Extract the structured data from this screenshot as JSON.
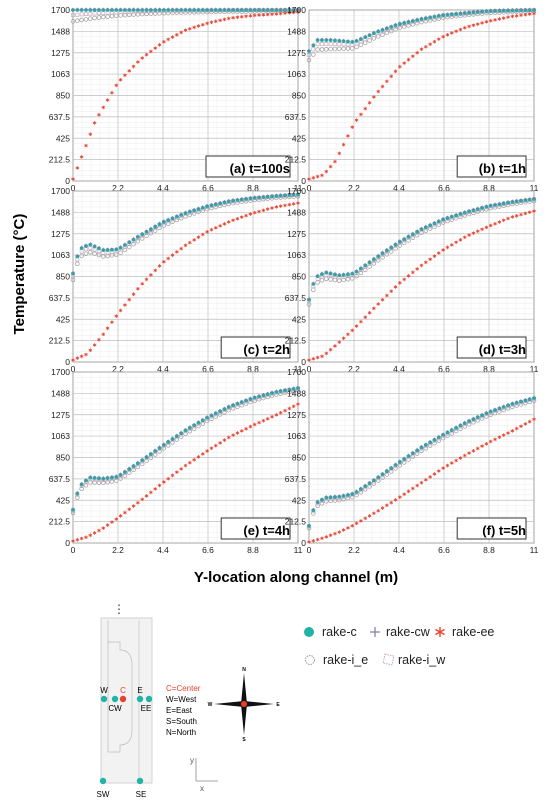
{
  "figure": {
    "ylabel": "Temperature (°C)",
    "xlabel": "Y-location along channel (m)"
  },
  "legend": [
    {
      "key": "rake_c",
      "label": "rake-c",
      "marker": "filled-circle",
      "color": "#21b3a6"
    },
    {
      "key": "rake_cw",
      "label": "rake-cw",
      "marker": "plus",
      "color": "#7a7aa8"
    },
    {
      "key": "rake_ee",
      "label": "rake-ee",
      "marker": "asterisk",
      "color": "#e8402e"
    },
    {
      "key": "rake_i_e",
      "label": "rake-i_e",
      "marker": "open-circle",
      "color": "#9a9a9a"
    },
    {
      "key": "rake_i_w",
      "label": "rake-i_w",
      "marker": "open-square",
      "color": "#c9a3bf"
    }
  ],
  "chart_data": [
    {
      "panel": "(a) t=100s",
      "type": "scatter",
      "x_ticks": [
        "0",
        "2.2",
        "4.4",
        "6.6",
        "8.8",
        "11"
      ],
      "y_ticks": [
        "0",
        "212.5",
        "425",
        "637.5",
        "850",
        "1063",
        "1275",
        "1488",
        "1700"
      ],
      "xlim": [
        0,
        11
      ],
      "ylim": [
        0,
        1700
      ],
      "center_curve": [
        [
          0,
          1700
        ],
        [
          11,
          1700
        ]
      ],
      "ee_curve": [
        [
          0,
          20
        ],
        [
          0.5,
          280
        ],
        [
          1.1,
          600
        ],
        [
          2.2,
          980
        ],
        [
          3.3,
          1210
        ],
        [
          4.4,
          1380
        ],
        [
          5.5,
          1500
        ],
        [
          6.6,
          1570
        ],
        [
          7.7,
          1620
        ],
        [
          8.8,
          1645
        ],
        [
          9.9,
          1660
        ],
        [
          11,
          1680
        ]
      ]
    },
    {
      "panel": "(b) t=1h",
      "type": "scatter",
      "x_ticks": [
        "0",
        "2.2",
        "4.4",
        "6.6",
        "8.8",
        "11"
      ],
      "y_ticks": [
        "0",
        "212.5",
        "425",
        "637.5",
        "850",
        "1063",
        "1275",
        "1488",
        "1700"
      ],
      "xlim": [
        0,
        11
      ],
      "ylim": [
        0,
        1700
      ],
      "center_curve": [
        [
          0,
          1290
        ],
        [
          0.4,
          1400
        ],
        [
          1.1,
          1400
        ],
        [
          2.2,
          1380
        ],
        [
          3.3,
          1480
        ],
        [
          4.4,
          1560
        ],
        [
          5.5,
          1610
        ],
        [
          6.6,
          1650
        ],
        [
          7.7,
          1670
        ],
        [
          8.8,
          1690
        ],
        [
          9.9,
          1695
        ],
        [
          11,
          1700
        ]
      ],
      "ee_curve": [
        [
          0,
          20
        ],
        [
          0.7,
          60
        ],
        [
          1.3,
          200
        ],
        [
          2.2,
          570
        ],
        [
          3.3,
          870
        ],
        [
          4.4,
          1130
        ],
        [
          5.5,
          1310
        ],
        [
          6.6,
          1440
        ],
        [
          7.7,
          1530
        ],
        [
          8.8,
          1590
        ],
        [
          9.9,
          1635
        ],
        [
          11,
          1665
        ]
      ]
    },
    {
      "panel": "(c) t=2h",
      "type": "scatter",
      "x_ticks": [
        "0",
        "2.2",
        "4.4",
        "6.6",
        "8.8",
        "11"
      ],
      "y_ticks": [
        "0",
        "212.5",
        "425",
        "637.5",
        "850",
        "1063",
        "1275",
        "1488",
        "1700"
      ],
      "xlim": [
        0,
        11
      ],
      "ylim": [
        0,
        1700
      ],
      "center_curve": [
        [
          0,
          880
        ],
        [
          0.3,
          1120
        ],
        [
          0.8,
          1170
        ],
        [
          1.5,
          1110
        ],
        [
          2.2,
          1120
        ],
        [
          3.3,
          1260
        ],
        [
          4.4,
          1390
        ],
        [
          5.5,
          1480
        ],
        [
          6.6,
          1550
        ],
        [
          7.7,
          1600
        ],
        [
          8.8,
          1630
        ],
        [
          9.9,
          1650
        ],
        [
          11,
          1665
        ]
      ],
      "ee_curve": [
        [
          0,
          20
        ],
        [
          0.7,
          80
        ],
        [
          1.5,
          280
        ],
        [
          2.2,
          480
        ],
        [
          3.3,
          760
        ],
        [
          4.4,
          990
        ],
        [
          5.5,
          1160
        ],
        [
          6.6,
          1300
        ],
        [
          7.7,
          1400
        ],
        [
          8.8,
          1480
        ],
        [
          9.9,
          1540
        ],
        [
          11,
          1580
        ]
      ]
    },
    {
      "panel": "(d) t=3h",
      "type": "scatter",
      "x_ticks": [
        "0",
        "2.2",
        "4.4",
        "6.6",
        "8.8",
        "11"
      ],
      "y_ticks": [
        "0",
        "212.5",
        "425",
        "637.5",
        "850",
        "1063",
        "1275",
        "1488",
        "1700"
      ],
      "xlim": [
        0,
        11
      ],
      "ylim": [
        0,
        1700
      ],
      "center_curve": [
        [
          0,
          620
        ],
        [
          0.3,
          840
        ],
        [
          0.8,
          890
        ],
        [
          1.5,
          860
        ],
        [
          2.2,
          880
        ],
        [
          3.3,
          1040
        ],
        [
          4.4,
          1190
        ],
        [
          5.5,
          1320
        ],
        [
          6.6,
          1420
        ],
        [
          7.7,
          1490
        ],
        [
          8.8,
          1550
        ],
        [
          9.9,
          1590
        ],
        [
          11,
          1620
        ]
      ],
      "ee_curve": [
        [
          0,
          20
        ],
        [
          0.7,
          60
        ],
        [
          1.5,
          200
        ],
        [
          2.2,
          330
        ],
        [
          3.3,
          560
        ],
        [
          4.4,
          780
        ],
        [
          5.5,
          960
        ],
        [
          6.6,
          1120
        ],
        [
          7.7,
          1250
        ],
        [
          8.8,
          1350
        ],
        [
          9.9,
          1440
        ],
        [
          11,
          1500
        ]
      ]
    },
    {
      "panel": "(e) t=4h",
      "type": "scatter",
      "x_ticks": [
        "0",
        "2.2",
        "4.4",
        "6.6",
        "8.8",
        "11"
      ],
      "y_ticks": [
        "0",
        "212.5",
        "425",
        "637.5",
        "850",
        "1063",
        "1275",
        "1488",
        "1700"
      ],
      "xlim": [
        0,
        11
      ],
      "ylim": [
        0,
        1700
      ],
      "center_curve": [
        [
          0,
          330
        ],
        [
          0.3,
          560
        ],
        [
          0.8,
          650
        ],
        [
          1.5,
          640
        ],
        [
          2.2,
          660
        ],
        [
          3.3,
          810
        ],
        [
          4.4,
          970
        ],
        [
          5.5,
          1120
        ],
        [
          6.6,
          1250
        ],
        [
          7.7,
          1360
        ],
        [
          8.8,
          1440
        ],
        [
          9.9,
          1500
        ],
        [
          11,
          1540
        ]
      ],
      "ee_curve": [
        [
          0,
          20
        ],
        [
          0.7,
          60
        ],
        [
          1.5,
          150
        ],
        [
          2.2,
          250
        ],
        [
          3.3,
          420
        ],
        [
          4.4,
          600
        ],
        [
          5.5,
          770
        ],
        [
          6.6,
          920
        ],
        [
          7.7,
          1060
        ],
        [
          8.8,
          1170
        ],
        [
          9.9,
          1270
        ],
        [
          11,
          1380
        ]
      ]
    },
    {
      "panel": "(f) t=5h",
      "type": "scatter",
      "x_ticks": [
        "0",
        "2.2",
        "4.4",
        "6.6",
        "8.8",
        "11"
      ],
      "y_ticks": [
        "0",
        "212.5",
        "425",
        "637.5",
        "850",
        "1063",
        "1275",
        "1488",
        "1700"
      ],
      "xlim": [
        0,
        11
      ],
      "ylim": [
        0,
        1700
      ],
      "center_curve": [
        [
          0,
          170
        ],
        [
          0.3,
          390
        ],
        [
          0.8,
          450
        ],
        [
          1.5,
          460
        ],
        [
          2.2,
          490
        ],
        [
          3.3,
          640
        ],
        [
          4.4,
          800
        ],
        [
          5.5,
          950
        ],
        [
          6.6,
          1080
        ],
        [
          7.7,
          1200
        ],
        [
          8.8,
          1300
        ],
        [
          9.9,
          1380
        ],
        [
          11,
          1440
        ]
      ],
      "ee_curve": [
        [
          0,
          10
        ],
        [
          0.7,
          50
        ],
        [
          1.5,
          110
        ],
        [
          2.2,
          180
        ],
        [
          3.3,
          310
        ],
        [
          4.4,
          450
        ],
        [
          5.5,
          600
        ],
        [
          6.6,
          750
        ],
        [
          7.7,
          880
        ],
        [
          8.8,
          1000
        ],
        [
          9.9,
          1110
        ],
        [
          11,
          1230
        ]
      ]
    }
  ],
  "diagram": {
    "ellipsis": "⋮",
    "points": [
      {
        "label": "W",
        "color": "#21b3a6"
      },
      {
        "label": "C",
        "color": "#e8402e"
      },
      {
        "label": "E",
        "color": "#21b3a6"
      },
      {
        "label": "CW",
        "color": "#21b3a6"
      },
      {
        "label": "EE",
        "color": "#21b3a6"
      },
      {
        "label": "SW",
        "color": "#21b3a6"
      },
      {
        "label": "SE",
        "color": "#21b3a6"
      }
    ],
    "key": [
      "C=Center",
      "W=West",
      "E=East",
      "S=South",
      "N=North"
    ],
    "compass": [
      "N",
      "S",
      "W",
      "E"
    ],
    "axes": [
      "y",
      "x"
    ]
  }
}
